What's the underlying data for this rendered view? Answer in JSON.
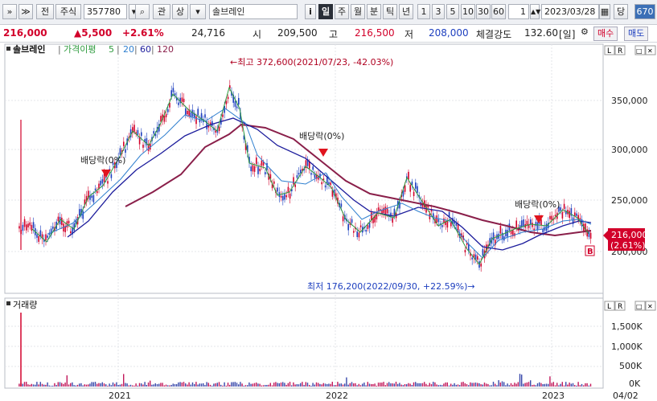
{
  "toolbar": {
    "expand_btn": "»",
    "dropdown_btn": "≫",
    "market_btn": "전",
    "type_btn": "주식",
    "code_value": "357780",
    "search_icon": "search-icon",
    "kwan_btn": "관",
    "updown_btn": "상",
    "stock_name": "솔브레인",
    "info_btn": "i",
    "periods": [
      "일",
      "주",
      "월",
      "분",
      "틱",
      "년"
    ],
    "active_period": "일",
    "minutes": [
      "1",
      "3",
      "5",
      "10",
      "30",
      "60"
    ],
    "count_value": "1",
    "date_value": "2023/03/28",
    "date_picker_icon": "calendar-icon",
    "dang_btn": "당",
    "zoom_value": "670"
  },
  "quote": {
    "price": "216,000",
    "change": "▲5,500",
    "change_pct": "+2.61%",
    "volume": "24,716",
    "open_label": "시",
    "open": "209,500",
    "high_label": "고",
    "high": "216,500",
    "low_label": "저",
    "low": "208,000",
    "strength_label": "체결강도",
    "strength": "132.60",
    "strength_unit": "[일]",
    "buy_btn": "매수",
    "sell_btn": "매도",
    "colors": {
      "up": "#d2002a",
      "down": "#1d3fbf"
    }
  },
  "chart": {
    "legend": {
      "name": "솔브레인",
      "ma_label": "가격이평",
      "ma_periods": [
        "5",
        "20",
        "60",
        "120"
      ],
      "ma_colors": [
        "#2e9b3e",
        "#2f7fcf",
        "#1c1c9c",
        "#8a1f4a"
      ]
    },
    "right_controls": [
      "L",
      "R"
    ],
    "annotations": {
      "high": "←최고 372,600(2021/07/23, -42.03%)",
      "low": "최저 176,200(2022/09/30, +22.59%)→",
      "div1": "배당락(0%)",
      "div2": "배당락(0%)",
      "div3": "배당락(0%)"
    },
    "price_axis": [
      "350,000",
      "300,000",
      "250,000",
      "200,000"
    ],
    "current_price": "216,000",
    "current_pct": "(2.61%)",
    "b_marker": "B",
    "volume_title": "거래량",
    "volume_axis": [
      "1,500K",
      "1,000K",
      "500K",
      "0K"
    ],
    "x_labels": [
      "2021",
      "2022",
      "2023"
    ],
    "end_date": "04/02"
  }
}
